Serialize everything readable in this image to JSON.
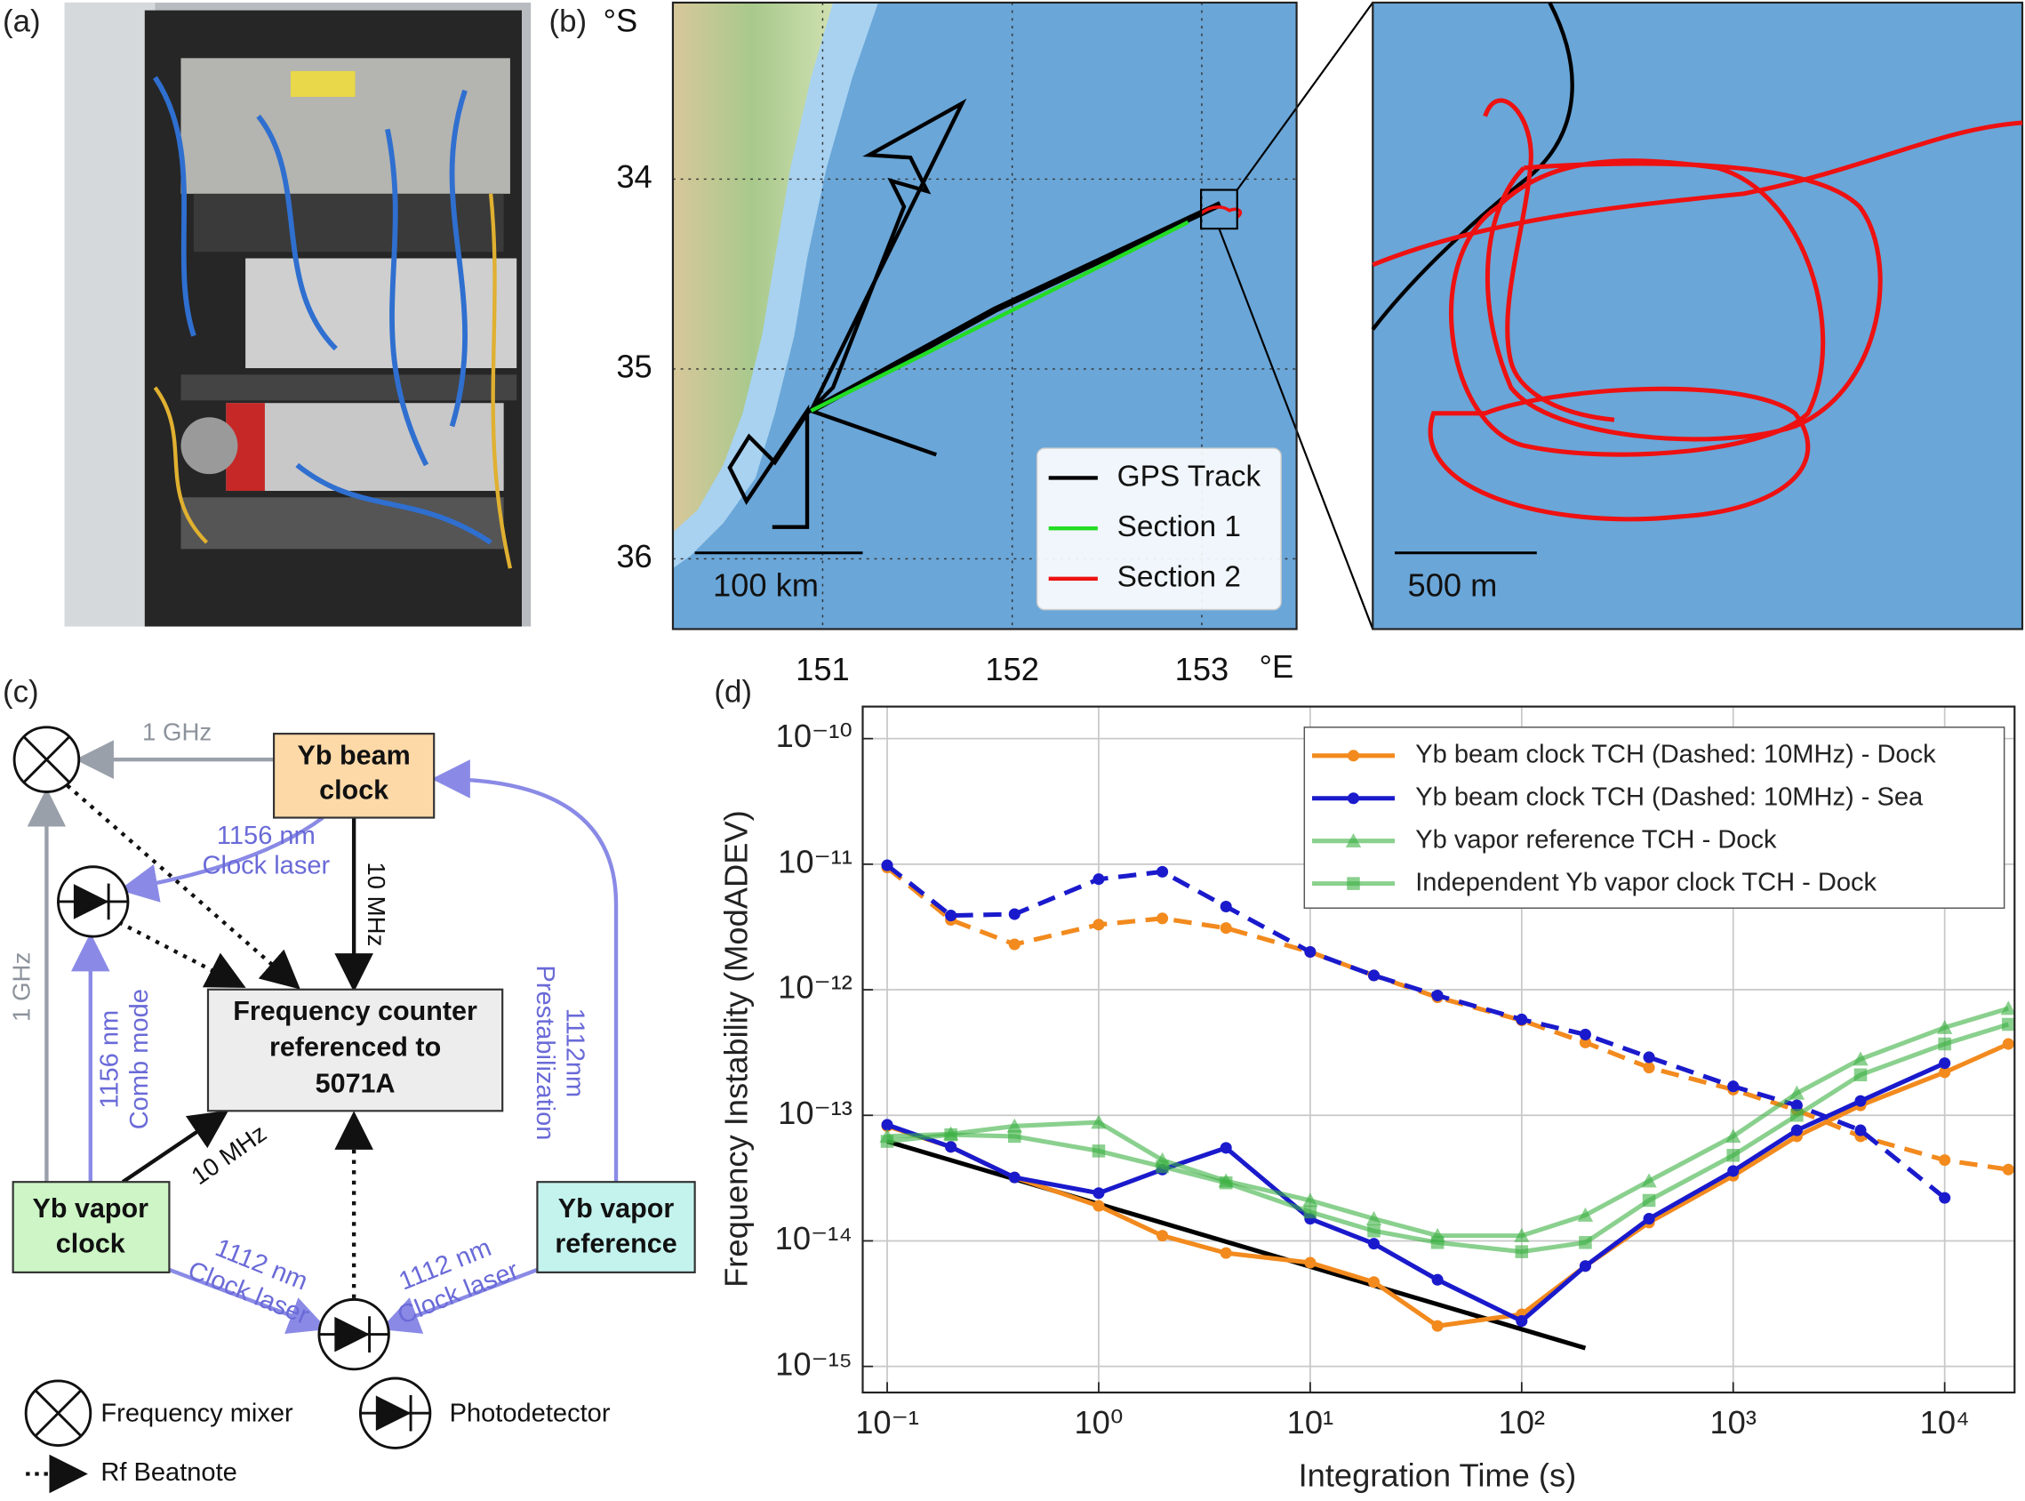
{
  "panel_labels": {
    "a": "(a)",
    "b": "(b)",
    "c": "(c)",
    "d": "(d)"
  },
  "map": {
    "lat_unit": "°S",
    "lon_unit": "°E",
    "lat_ticks": [
      34,
      35,
      36
    ],
    "lon_ticks": [
      151,
      152,
      153
    ],
    "lat_lim": [
      33.07,
      36.37
    ],
    "lon_lim": [
      150.21,
      153.5
    ],
    "grid": true,
    "scale_bar": "100 km",
    "inset_scale_bar": "500 m",
    "legend": [
      {
        "name": "GPS Track",
        "color": "#000000"
      },
      {
        "name": "Section 1",
        "color": "#22dd22"
      },
      {
        "name": "Section 2",
        "color": "#ee1111"
      }
    ]
  },
  "diagram": {
    "nodes": [
      {
        "label": [
          "Yb beam",
          "clock"
        ]
      },
      {
        "label": [
          "Frequency counter",
          "referenced to",
          "5071A"
        ]
      },
      {
        "label": [
          "Yb vapor",
          "clock"
        ]
      },
      {
        "label": [
          "Yb vapor",
          "reference"
        ]
      }
    ],
    "edge_labels": [
      [
        "1 GHz"
      ],
      [
        "1156 nm",
        "Clock laser"
      ],
      [
        "10 MHz"
      ],
      [
        "1112nm",
        "Prestabilization"
      ],
      [
        "1 GHz"
      ],
      [
        "1156 nm",
        "Comb mode"
      ],
      [
        "10 MHz"
      ],
      [
        "1112 nm",
        "Clock laser"
      ],
      [
        "1112 nm",
        "Clock laser"
      ]
    ],
    "legend": {
      "mixer": "Frequency mixer",
      "photodetector": "Photodetector",
      "beatnote": "Rf Beatnote"
    }
  },
  "chart_data": {
    "type": "line",
    "x_label": "Integration Time (s)",
    "y_label": "Frequency Instability (ModADEV)",
    "log_x": true,
    "log_y": true,
    "grid": true,
    "legend_corner": "upper right",
    "xlim": [
      0.0766,
      21400
    ],
    "ylim": [
      6.2e-16,
      1.8e-10
    ],
    "xticks": [
      {
        "value": 0.1,
        "label": "10⁻¹"
      },
      {
        "value": 1,
        "label": "10⁰"
      },
      {
        "value": 10,
        "label": "10¹"
      },
      {
        "value": 100,
        "label": "10²"
      },
      {
        "value": 1000,
        "label": "10³"
      },
      {
        "value": 10000,
        "label": "10⁴"
      }
    ],
    "yticks": [
      {
        "value": 1e-10,
        "label": "10⁻¹⁰"
      },
      {
        "value": 1e-11,
        "label": "10⁻¹¹"
      },
      {
        "value": 1e-12,
        "label": "10⁻¹²"
      },
      {
        "value": 1e-13,
        "label": "10⁻¹³"
      },
      {
        "value": 1e-14,
        "label": "10⁻¹⁴"
      },
      {
        "value": 1e-15,
        "label": "10⁻¹⁵"
      }
    ],
    "series": [
      {
        "name": "Yb beam clock TCH (Dashed: 10MHz) - Dock",
        "color": "#f28a1e",
        "marker": "circle",
        "x": [
          0.1,
          0.2,
          0.4,
          1,
          2,
          4,
          10,
          20,
          40,
          100,
          200,
          400,
          1000,
          2000,
          4000,
          10000,
          20000
        ],
        "values": [
          8.2e-14,
          5.6e-14,
          3.2e-14,
          1.9e-14,
          1.1e-14,
          8e-15,
          6.7e-15,
          4.7e-15,
          2.1e-15,
          2.6e-15,
          6.3e-15,
          1.4e-14,
          3.3e-14,
          6.8e-14,
          1.2e-13,
          2.2e-13,
          3.7e-13
        ],
        "dashed_x": [
          0.1,
          0.2,
          0.4,
          1,
          2,
          4,
          10,
          20,
          40,
          100,
          200,
          400,
          1000,
          2000,
          4000,
          10000,
          20000
        ],
        "dashed_values": [
          9.4e-12,
          3.6e-12,
          2.3e-12,
          3.3e-12,
          3.7e-12,
          3.1e-12,
          2e-12,
          1.3e-12,
          8.7e-13,
          5.7e-13,
          3.8e-13,
          2.4e-13,
          1.6e-13,
          1.1e-13,
          6.8e-14,
          4.4e-14,
          3.7e-14
        ]
      },
      {
        "name": "Yb beam clock TCH (Dashed: 10MHz) - Sea",
        "color": "#1a1acc",
        "marker": "circle",
        "x": [
          0.1,
          0.2,
          0.4,
          1,
          2,
          4,
          10,
          20,
          40,
          100,
          200,
          400,
          1000,
          2000,
          4000,
          10000
        ],
        "values": [
          8.4e-14,
          5.6e-14,
          3.2e-14,
          2.4e-14,
          3.7e-14,
          5.5e-14,
          1.5e-14,
          9.5e-15,
          4.9e-15,
          2.3e-15,
          6.3e-15,
          1.5e-14,
          3.6e-14,
          7.6e-14,
          1.3e-13,
          2.6e-13
        ],
        "dashed_x": [
          0.1,
          0.2,
          0.4,
          1,
          2,
          4,
          10,
          20,
          40,
          100,
          200,
          400,
          1000,
          2000,
          4000,
          10000
        ],
        "dashed_values": [
          9.8e-12,
          3.9e-12,
          4e-12,
          7.6e-12,
          8.7e-12,
          4.6e-12,
          2e-12,
          1.3e-12,
          9e-13,
          5.8e-13,
          4.4e-13,
          2.9e-13,
          1.7e-13,
          1.2e-13,
          7.6e-14,
          2.2e-14
        ]
      },
      {
        "name": "Yb vapor reference TCH - Dock",
        "color": "#3cb043",
        "marker": "triangle",
        "x": [
          0.1,
          0.2,
          0.4,
          1,
          2,
          4,
          10,
          20,
          40,
          100,
          200,
          400,
          1000,
          2000,
          4000,
          10000,
          20000
        ],
        "values": [
          6.8e-14,
          7.1e-14,
          8.2e-14,
          8.8e-14,
          4.4e-14,
          3e-14,
          2.1e-14,
          1.5e-14,
          1.1e-14,
          1.1e-14,
          1.6e-14,
          3e-14,
          6.8e-14,
          1.5e-13,
          2.8e-13,
          5e-13,
          7.1e-13
        ]
      },
      {
        "name": "Independent Yb vapor clock TCH - Dock",
        "color": "#3cb043",
        "marker": "square",
        "x": [
          0.1,
          0.2,
          0.4,
          1,
          2,
          4,
          10,
          20,
          40,
          100,
          200,
          400,
          1000,
          2000,
          4000,
          10000,
          20000
        ],
        "values": [
          6.2e-14,
          7e-14,
          6.8e-14,
          5.2e-14,
          3.9e-14,
          2.9e-14,
          1.7e-14,
          1.2e-14,
          9.7e-15,
          8.2e-15,
          9.7e-15,
          2.1e-14,
          4.8e-14,
          1e-13,
          2.1e-13,
          3.7e-13,
          5.3e-13
        ]
      }
    ],
    "reference_line": {
      "x": [
        0.1,
        200
      ],
      "values": [
        6.2e-14,
        1.4e-15
      ],
      "color": "#000000"
    }
  }
}
